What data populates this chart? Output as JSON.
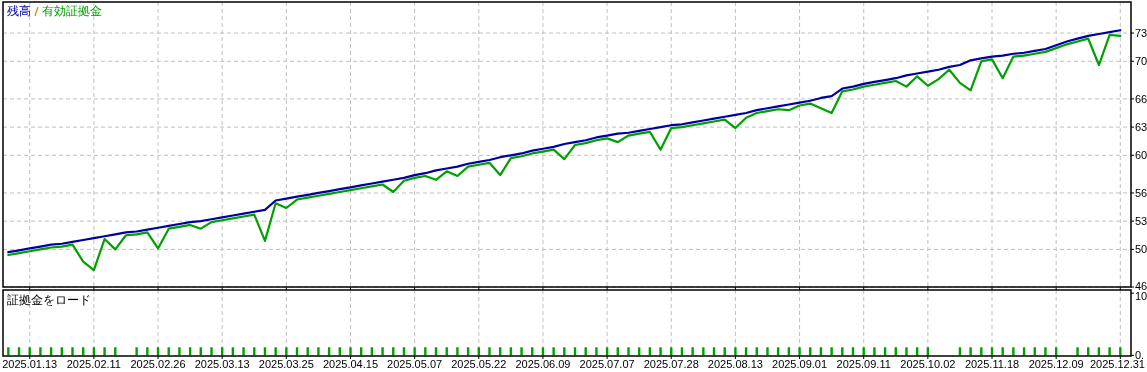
{
  "chart_data": [
    {
      "type": "line",
      "legend": "top left",
      "grid": true,
      "tick_labels": "y",
      "ylim": [
        46,
        76.3
      ],
      "yticks": [
        46,
        50,
        53,
        56,
        60,
        63,
        66,
        70,
        73
      ],
      "categories": [
        null,
        null,
        "2025.01.13",
        null,
        null,
        null,
        null,
        null,
        "2025.02.11",
        null,
        null,
        null,
        null,
        null,
        "2025.02.26",
        null,
        null,
        null,
        null,
        null,
        "2025.03.13",
        null,
        null,
        null,
        null,
        null,
        "2025.03.25",
        null,
        null,
        null,
        null,
        null,
        "2025.04.15",
        null,
        null,
        null,
        null,
        null,
        "2025.05.07",
        null,
        null,
        null,
        null,
        null,
        "2025.05.22",
        null,
        null,
        null,
        null,
        null,
        "2025.06.09",
        null,
        null,
        null,
        null,
        null,
        "2025.07.07",
        null,
        null,
        null,
        null,
        null,
        "2025.07.28",
        null,
        null,
        null,
        null,
        null,
        "2025.08.13",
        null,
        null,
        null,
        null,
        null,
        "2025.09.01",
        null,
        null,
        null,
        null,
        null,
        "2025.09.11",
        null,
        null,
        null,
        null,
        null,
        "2025.10.02",
        null,
        null,
        null,
        null,
        null,
        "2025.11.18",
        null,
        null,
        null,
        null,
        null,
        "2025.12.09",
        null,
        null,
        null,
        null,
        null,
        "2025.12.31"
      ],
      "series": [
        {
          "name": "有効証拠金",
          "color": "#00a000",
          "values": [
            49.4,
            49.6,
            49.8,
            50.0,
            50.2,
            50.3,
            50.5,
            48.7,
            47.8,
            51.1,
            50.0,
            51.5,
            51.6,
            51.8,
            50.1,
            52.2,
            52.4,
            52.6,
            52.2,
            52.9,
            53.1,
            53.3,
            53.5,
            53.7,
            50.9,
            54.9,
            54.4,
            55.3,
            55.5,
            55.7,
            55.9,
            56.1,
            56.3,
            56.5,
            56.7,
            56.9,
            56.1,
            57.3,
            57.6,
            57.8,
            57.4,
            58.3,
            57.8,
            58.8,
            59.0,
            59.2,
            57.9,
            59.7,
            59.9,
            60.2,
            60.4,
            60.6,
            59.6,
            61.1,
            61.3,
            61.6,
            61.8,
            61.4,
            62.1,
            62.3,
            62.5,
            60.6,
            62.9,
            63.0,
            63.2,
            63.4,
            63.6,
            63.8,
            62.9,
            64.0,
            64.5,
            64.7,
            64.9,
            64.8,
            65.3,
            65.5,
            65.0,
            64.5,
            66.8,
            67.0,
            67.3,
            67.5,
            67.7,
            67.9,
            67.3,
            68.4,
            67.4,
            68.1,
            69.1,
            67.7,
            66.9,
            70.0,
            70.2,
            68.2,
            70.5,
            70.6,
            70.8,
            71.0,
            71.4,
            71.8,
            72.1,
            72.4,
            69.6,
            72.8,
            72.7
          ]
        },
        {
          "name": "残高",
          "color": "#0000a0",
          "values": [
            49.7,
            49.9,
            50.1,
            50.3,
            50.5,
            50.6,
            50.8,
            51.0,
            51.2,
            51.4,
            51.6,
            51.8,
            51.9,
            52.1,
            52.3,
            52.5,
            52.7,
            52.9,
            53.0,
            53.2,
            53.4,
            53.6,
            53.8,
            54.0,
            54.2,
            55.2,
            55.4,
            55.6,
            55.8,
            56.0,
            56.2,
            56.4,
            56.6,
            56.8,
            57.0,
            57.2,
            57.4,
            57.6,
            57.9,
            58.1,
            58.4,
            58.6,
            58.8,
            59.1,
            59.3,
            59.5,
            59.8,
            60.0,
            60.2,
            60.5,
            60.7,
            60.9,
            61.2,
            61.4,
            61.6,
            61.9,
            62.1,
            62.3,
            62.4,
            62.6,
            62.8,
            63.0,
            63.2,
            63.3,
            63.5,
            63.7,
            63.9,
            64.1,
            64.3,
            64.5,
            64.8,
            65.0,
            65.2,
            65.4,
            65.6,
            65.8,
            66.1,
            66.3,
            67.1,
            67.3,
            67.6,
            67.8,
            68.0,
            68.2,
            68.5,
            68.7,
            68.9,
            69.1,
            69.4,
            69.6,
            70.1,
            70.3,
            70.5,
            70.6,
            70.8,
            70.9,
            71.1,
            71.3,
            71.7,
            72.1,
            72.4,
            72.7,
            72.9,
            73.1,
            73.3
          ]
        }
      ]
    },
    {
      "type": "bar",
      "title": "証拠金をロード",
      "grid": "x",
      "ylim": [
        -0.1,
        10.5
      ],
      "yticks": [
        {
          "value": 0,
          "label": "0."
        },
        {
          "value": 10,
          "label": "10"
        }
      ],
      "categories": [
        null,
        null,
        "2025.01.13",
        null,
        null,
        null,
        null,
        null,
        "2025.02.11",
        null,
        null,
        null,
        null,
        null,
        "2025.02.26",
        null,
        null,
        null,
        null,
        null,
        "2025.03.13",
        null,
        null,
        null,
        null,
        null,
        "2025.03.25",
        null,
        null,
        null,
        null,
        null,
        "2025.04.15",
        null,
        null,
        null,
        null,
        null,
        "2025.05.07",
        null,
        null,
        null,
        null,
        null,
        "2025.05.22",
        null,
        null,
        null,
        null,
        null,
        "2025.06.09",
        null,
        null,
        null,
        null,
        null,
        "2025.07.07",
        null,
        null,
        null,
        null,
        null,
        "2025.07.28",
        null,
        null,
        null,
        null,
        null,
        "2025.08.13",
        null,
        null,
        null,
        null,
        null,
        "2025.09.01",
        null,
        null,
        null,
        null,
        null,
        "2025.09.11",
        null,
        null,
        null,
        null,
        null,
        "2025.10.02",
        null,
        null,
        null,
        null,
        null,
        "2025.11.18",
        null,
        null,
        null,
        null,
        null,
        "2025.12.09",
        null,
        null,
        null,
        null,
        null,
        "2025.12.31"
      ],
      "series": [
        {
          "color": "#00a000",
          "values": [
            1.3,
            1.3,
            1.3,
            1.3,
            1.3,
            1.3,
            1.3,
            1.3,
            1.3,
            1.3,
            1.3,
            null,
            1.3,
            1.3,
            1.3,
            1.3,
            1.3,
            1.3,
            1.3,
            1.3,
            1.3,
            1.3,
            1.3,
            1.3,
            1.3,
            1.3,
            1.3,
            1.3,
            1.3,
            1.3,
            1.3,
            1.3,
            1.3,
            1.3,
            1.3,
            1.3,
            1.3,
            1.3,
            1.3,
            1.3,
            1.3,
            1.3,
            1.3,
            1.3,
            1.3,
            1.3,
            1.3,
            1.3,
            1.3,
            1.3,
            1.3,
            1.3,
            1.3,
            1.3,
            1.3,
            1.3,
            1.3,
            1.3,
            1.3,
            1.3,
            1.3,
            1.3,
            1.3,
            1.3,
            1.3,
            1.3,
            1.3,
            1.3,
            1.3,
            1.3,
            1.3,
            1.3,
            1.3,
            1.3,
            1.3,
            1.3,
            1.3,
            1.3,
            1.3,
            1.3,
            1.3,
            1.3,
            1.3,
            1.3,
            1.3,
            1.3,
            1.3,
            null,
            null,
            1.3,
            1.3,
            1.3,
            1.3,
            1.3,
            1.3,
            1.3,
            1.3,
            1.3,
            1.3,
            null,
            1.3,
            1.3,
            1.3,
            1.3,
            1.3
          ]
        }
      ]
    }
  ]
}
